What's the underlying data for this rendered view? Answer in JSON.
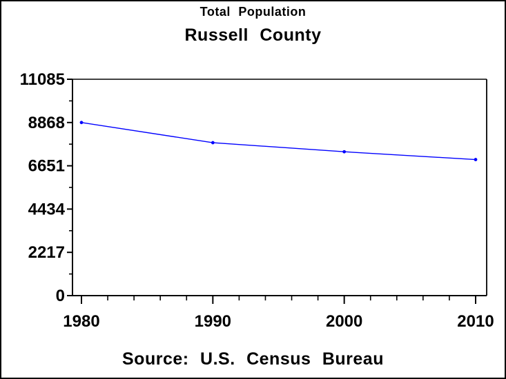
{
  "chart_data": {
    "type": "line",
    "title": "Total Population",
    "subtitle": "Russell County",
    "footnote": "Source: U.S. Census Bureau",
    "xlabel": "",
    "ylabel": "",
    "x": [
      1980,
      1990,
      2000,
      2010
    ],
    "series": [
      {
        "name": "Total Population",
        "values": [
          8868,
          7835,
          7370,
          6970
        ],
        "color": "#0000FF",
        "marker": "dot"
      }
    ],
    "axes": {
      "xlim": [
        1980,
        2010
      ],
      "ylim": [
        0,
        11085
      ],
      "x_major_ticks": [
        1980,
        1990,
        2000,
        2010
      ],
      "y_major_ticks": [
        0,
        2217,
        4434,
        6651,
        8868,
        11085
      ],
      "x_minor_tick_interval": 2,
      "y_minor_ticks_between_major": 1
    },
    "grid": false,
    "legend": false,
    "frame": true,
    "colors": {
      "axis": "#000000",
      "text": "#000000",
      "background": "#FFFFFF",
      "border": "#000000"
    }
  }
}
